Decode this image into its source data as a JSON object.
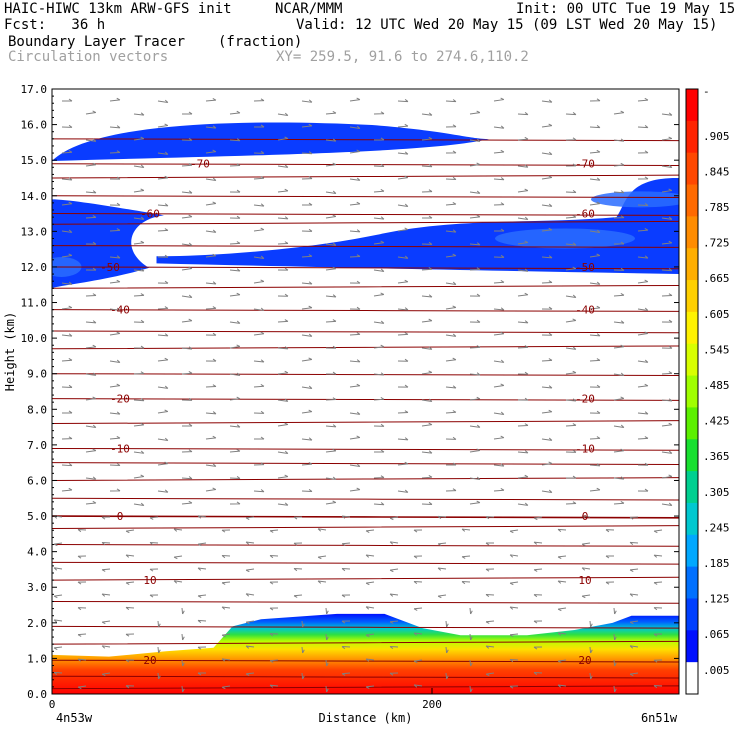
{
  "header": {
    "model": "HAIC-HIWC 13km ARW-GFS init",
    "org": "NCAR/MMM",
    "init": "Init: 00 UTC Tue 19 May 15",
    "fcst": "Fcst:   36 h",
    "valid": "Valid: 12 UTC Wed 20 May 15 (09 LST Wed 20 May 15)",
    "field": "Boundary Layer Tracer",
    "units": "(fraction)",
    "overlay": "Circulation vectors",
    "xy": "XY= 259.5, 91.6 to 274.6,110.2"
  },
  "chart_data": {
    "type": "heatmap",
    "xlabel": "Distance (km)",
    "ylabel": "Height (km)",
    "xlim": [
      0,
      330
    ],
    "ylim": [
      0,
      17
    ],
    "x_ticks": [
      0,
      200
    ],
    "x_end_labels": [
      "4n53w",
      "6n51w"
    ],
    "y_ticks": [
      "0.0",
      "1.0",
      "2.0",
      "3.0",
      "4.0",
      "5.0",
      "6.0",
      "7.0",
      "8.0",
      "9.0",
      "10.0",
      "11.0",
      "12.0",
      "13.0",
      "14.0",
      "15.0",
      "16.0",
      "17.0"
    ],
    "colorbar": {
      "labels": [
        "-",
        ".905",
        ".845",
        ".785",
        ".725",
        ".665",
        ".605",
        ".545",
        ".485",
        ".425",
        ".365",
        ".305",
        ".245",
        ".185",
        ".125",
        ".065",
        ".005"
      ],
      "colors": [
        "#ff0000",
        "#ff2400",
        "#ff4800",
        "#ff6a00",
        "#ff8c00",
        "#ffae00",
        "#ffd000",
        "#fff200",
        "#d8ff00",
        "#a0ff00",
        "#5cf000",
        "#18e030",
        "#00d090",
        "#00c8d0",
        "#00a8ff",
        "#0070ff",
        "#0040ff",
        "#0010ff",
        "#ffffff"
      ]
    },
    "temperature_contours_C": [
      {
        "label": "-70",
        "height_km": 14.9
      },
      {
        "label": "-60",
        "height_km": 13.5
      },
      {
        "label": "-50",
        "height_km": 12.0
      },
      {
        "label": "-40",
        "height_km": 10.8
      },
      {
        "label": "-20",
        "height_km": 8.3
      },
      {
        "label": "-10",
        "height_km": 6.9
      },
      {
        "label": "0",
        "height_km": 5.0
      },
      {
        "label": "10",
        "height_km": 3.2
      },
      {
        "label": "20",
        "height_km": 0.95
      }
    ],
    "boundary_layer_top_km": [
      [
        0,
        1.1
      ],
      [
        30,
        1.05
      ],
      [
        60,
        1.2
      ],
      [
        85,
        1.3
      ],
      [
        95,
        1.9
      ],
      [
        110,
        2.1
      ],
      [
        150,
        2.25
      ],
      [
        175,
        2.25
      ],
      [
        195,
        1.85
      ],
      [
        215,
        1.65
      ],
      [
        250,
        1.65
      ],
      [
        275,
        1.8
      ],
      [
        295,
        2.0
      ],
      [
        305,
        2.2
      ],
      [
        330,
        2.2
      ]
    ],
    "upper_tracer_layers": [
      {
        "name": "upper",
        "x": [
          0,
          230
        ],
        "base_km": 15.2,
        "top_km": 16.1,
        "value": 0.005
      },
      {
        "name": "mid-left",
        "x": [
          0,
          30
        ],
        "base_km": 12.2,
        "top_km": 13.9,
        "value": 0.005
      },
      {
        "name": "mid-right",
        "x": [
          55,
          330
        ],
        "base_km": 11.8,
        "top_km": 14.5,
        "value": 0.005
      }
    ]
  }
}
